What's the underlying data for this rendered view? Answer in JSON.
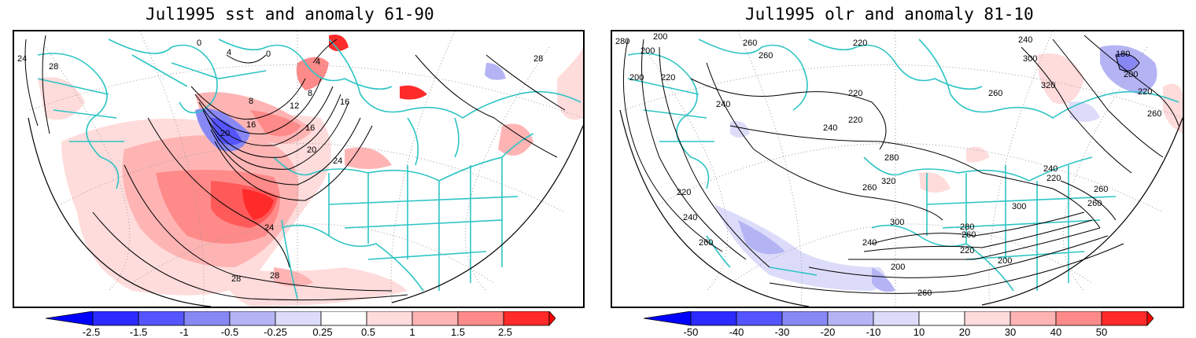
{
  "panels": [
    {
      "title": "Jul1995 sst and anomaly 61-90",
      "variable": "sst",
      "contour_labels": [
        "24",
        "28",
        "0",
        "0",
        "4",
        "4",
        "8",
        "8",
        "12",
        "16",
        "16",
        "16",
        "20",
        "20",
        "24",
        "24",
        "28",
        "28",
        "28"
      ],
      "colorbar_ticks": [
        "-2.5",
        "-1.5",
        "-1",
        "-0.5",
        "-0.25",
        "0.25",
        "0.5",
        "1",
        "1.5",
        "2.5"
      ]
    },
    {
      "title": "Jul1995 olr and anomaly 81-10",
      "variable": "olr",
      "contour_labels": [
        "280",
        "200",
        "200",
        "200",
        "220",
        "260",
        "260",
        "220",
        "240",
        "300",
        "180",
        "200",
        "220",
        "320",
        "240",
        "220",
        "220",
        "260",
        "260",
        "240",
        "280",
        "260",
        "320",
        "240",
        "220",
        "260",
        "260",
        "300",
        "300",
        "280",
        "260",
        "220",
        "200",
        "200",
        "240",
        "260",
        "240",
        "220",
        "260"
      ],
      "colorbar_ticks": [
        "-50",
        "-40",
        "-30",
        "-20",
        "-10",
        "10",
        "20",
        "30",
        "40",
        "50"
      ]
    }
  ],
  "colors": {
    "coastline": "#2ec4c4",
    "contour": "#000000",
    "grid": "#9a9a9a",
    "negative_scale": [
      "#2b2bff",
      "#5555ff",
      "#8888f5",
      "#b4b4f5",
      "#dcdcfa"
    ],
    "positive_scale": [
      "#ffdcdc",
      "#ffb4b4",
      "#ff8a8a",
      "#ff5a5a",
      "#ff2a2a"
    ],
    "neutral": "#ffffff"
  }
}
